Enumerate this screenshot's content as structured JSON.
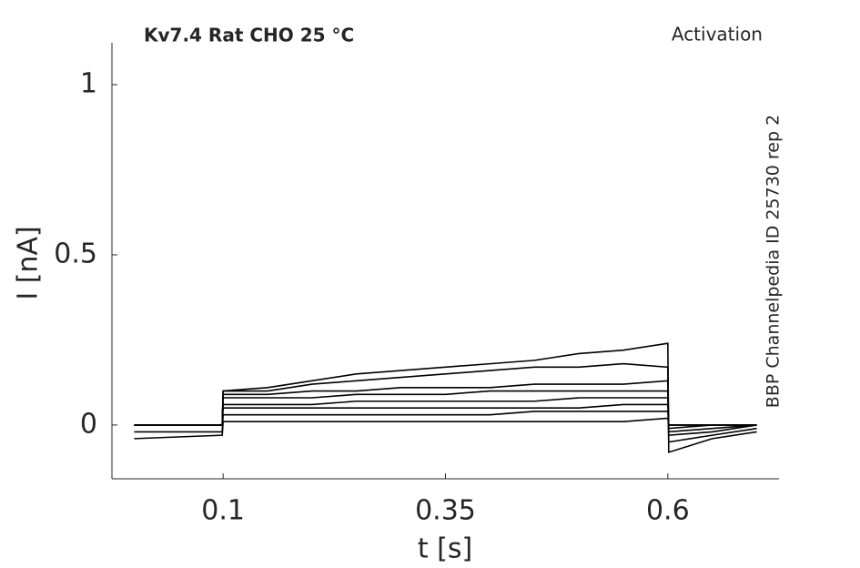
{
  "chart_data": {
    "type": "line",
    "title": "Kv7.4  Rat  CHO  25 °C",
    "subtitle": "Activation",
    "annotation": "BBP Channelpedia ID 25730 rep 2",
    "x_label": "t [s]",
    "y_label": "I [nA]",
    "x": [
      0,
      0.099,
      0.1,
      0.15,
      0.2,
      0.25,
      0.3,
      0.35,
      0.4,
      0.45,
      0.5,
      0.55,
      0.6,
      0.601,
      0.65,
      0.7
    ],
    "series": [
      {
        "color": "#000000",
        "values": [
          0,
          0,
          0.1,
          0.11,
          0.13,
          0.15,
          0.16,
          0.17,
          0.18,
          0.19,
          0.21,
          0.22,
          0.24,
          -0.08,
          -0.04,
          -0.02
        ]
      },
      {
        "color": "#000000",
        "values": [
          0,
          0,
          0.1,
          0.1,
          0.12,
          0.13,
          0.14,
          0.15,
          0.16,
          0.17,
          0.17,
          0.18,
          0.17,
          -0.05,
          -0.03,
          -0.01
        ]
      },
      {
        "color": "#000000",
        "values": [
          0,
          0,
          0.09,
          0.09,
          0.1,
          0.1,
          0.11,
          0.11,
          0.11,
          0.12,
          0.12,
          0.12,
          0.13,
          -0.03,
          -0.02,
          0
        ]
      },
      {
        "color": "#000000",
        "values": [
          0,
          0,
          0.08,
          0.08,
          0.08,
          0.09,
          0.09,
          0.09,
          0.1,
          0.1,
          0.1,
          0.1,
          0.1,
          -0.02,
          -0.01,
          0
        ]
      },
      {
        "color": "#000000",
        "values": [
          0,
          0,
          0.06,
          0.06,
          0.06,
          0.07,
          0.07,
          0.07,
          0.07,
          0.07,
          0.08,
          0.08,
          0.08,
          -0.01,
          0,
          0
        ]
      },
      {
        "color": "#000000",
        "values": [
          0,
          0,
          0.05,
          0.05,
          0.05,
          0.05,
          0.05,
          0.05,
          0.05,
          0.05,
          0.05,
          0.06,
          0.06,
          0,
          0,
          0
        ]
      },
      {
        "color": "#000000",
        "values": [
          -0.02,
          -0.02,
          0.03,
          0.03,
          0.03,
          0.03,
          0.03,
          0.03,
          0.03,
          0.04,
          0.04,
          0.04,
          0.04,
          0,
          0,
          0
        ]
      },
      {
        "color": "#000000",
        "values": [
          -0.04,
          -0.03,
          0.01,
          0.01,
          0.01,
          0.01,
          0.01,
          0.01,
          0.01,
          0.01,
          0.01,
          0.01,
          0.02,
          0,
          0,
          0
        ]
      }
    ],
    "xlim": [
      -0.025,
      0.725
    ],
    "ylim": [
      -0.158,
      1.123
    ],
    "xticks": [
      0.1,
      0.35,
      0.6
    ],
    "yticks": [
      0,
      0.5,
      1
    ]
  }
}
